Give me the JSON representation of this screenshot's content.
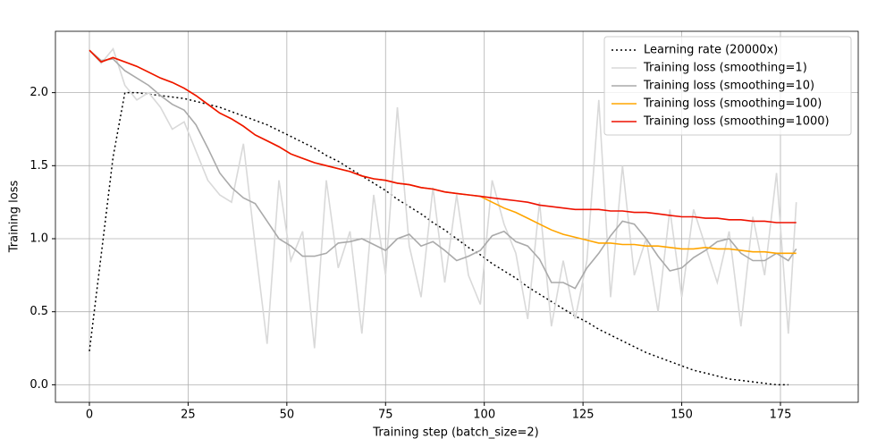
{
  "chart_data": {
    "type": "line",
    "xlabel": "Training step (batch_size=2)",
    "ylabel": "Training loss",
    "x": [
      0,
      3,
      6,
      9,
      12,
      15,
      18,
      21,
      24,
      27,
      30,
      33,
      36,
      39,
      42,
      45,
      48,
      51,
      54,
      57,
      60,
      63,
      66,
      69,
      72,
      75,
      78,
      81,
      84,
      87,
      90,
      93,
      96,
      99,
      102,
      105,
      108,
      111,
      114,
      117,
      120,
      123,
      126,
      129,
      132,
      135,
      138,
      141,
      144,
      147,
      150,
      153,
      156,
      159,
      162,
      165,
      168,
      171,
      174,
      177,
      179
    ],
    "series": [
      {
        "name": "Learning rate (20000x)",
        "color": "#000000",
        "dash": "dotted",
        "values": [
          0.23,
          0.89,
          1.56,
          2.0,
          2.0,
          1.99,
          1.98,
          1.97,
          1.96,
          1.94,
          1.92,
          1.9,
          1.87,
          1.84,
          1.81,
          1.78,
          1.74,
          1.7,
          1.66,
          1.62,
          1.57,
          1.53,
          1.48,
          1.43,
          1.38,
          1.33,
          1.27,
          1.22,
          1.17,
          1.11,
          1.06,
          1.0,
          0.94,
          0.89,
          0.83,
          0.78,
          0.73,
          0.67,
          0.62,
          0.57,
          0.52,
          0.47,
          0.43,
          0.38,
          0.34,
          0.3,
          0.26,
          0.22,
          0.19,
          0.16,
          0.13,
          0.1,
          0.08,
          0.06,
          0.04,
          0.03,
          0.02,
          0.01,
          0.0,
          0.0,
          null
        ]
      },
      {
        "name": "Training loss (smoothing=1)",
        "color": "#d9d9d9",
        "values": [
          2.29,
          2.2,
          2.3,
          2.05,
          1.95,
          2.0,
          1.9,
          1.75,
          1.8,
          1.6,
          1.4,
          1.3,
          1.25,
          1.65,
          0.95,
          0.28,
          1.4,
          0.85,
          1.05,
          0.25,
          1.4,
          0.8,
          1.05,
          0.35,
          1.3,
          0.75,
          1.9,
          0.95,
          0.6,
          1.35,
          0.7,
          1.3,
          0.75,
          0.55,
          1.4,
          1.1,
          0.9,
          0.45,
          1.25,
          0.4,
          0.85,
          0.45,
          0.85,
          1.95,
          0.6,
          1.5,
          0.75,
          1.0,
          0.5,
          1.2,
          0.6,
          1.2,
          0.95,
          0.7,
          1.05,
          0.4,
          1.15,
          0.75,
          1.45,
          0.35,
          1.25
        ]
      },
      {
        "name": "Training loss (smoothing=10)",
        "color": "#aaaaaa",
        "values": [
          2.29,
          2.22,
          2.23,
          2.15,
          2.1,
          2.05,
          1.98,
          1.92,
          1.88,
          1.78,
          1.62,
          1.45,
          1.35,
          1.28,
          1.24,
          1.12,
          1.0,
          0.95,
          0.88,
          0.88,
          0.9,
          0.97,
          0.98,
          1.0,
          0.96,
          0.92,
          1.0,
          1.03,
          0.95,
          0.98,
          0.92,
          0.85,
          0.88,
          0.92,
          1.02,
          1.05,
          0.98,
          0.95,
          0.86,
          0.7,
          0.7,
          0.66,
          0.8,
          0.9,
          1.02,
          1.12,
          1.1,
          1.0,
          0.88,
          0.78,
          0.8,
          0.87,
          0.92,
          0.98,
          1.0,
          0.9,
          0.85,
          0.85,
          0.9,
          0.85,
          0.93
        ]
      },
      {
        "name": "Training loss (smoothing=100)",
        "color": "#ffa500",
        "values": [
          2.29,
          2.21,
          2.24,
          2.21,
          2.18,
          2.14,
          2.1,
          2.07,
          2.03,
          1.98,
          1.92,
          1.86,
          1.82,
          1.77,
          1.71,
          1.67,
          1.63,
          1.58,
          1.55,
          1.52,
          1.5,
          1.48,
          1.46,
          1.43,
          1.41,
          1.4,
          1.38,
          1.37,
          1.35,
          1.34,
          1.32,
          1.31,
          1.3,
          1.29,
          1.25,
          1.21,
          1.18,
          1.14,
          1.1,
          1.06,
          1.03,
          1.01,
          0.99,
          0.97,
          0.97,
          0.96,
          0.96,
          0.95,
          0.95,
          0.94,
          0.93,
          0.93,
          0.94,
          0.93,
          0.93,
          0.92,
          0.91,
          0.91,
          0.9,
          0.9,
          0.9
        ]
      },
      {
        "name": "Training loss (smoothing=1000)",
        "color": "#ee1100",
        "values": [
          2.29,
          2.21,
          2.24,
          2.21,
          2.18,
          2.14,
          2.1,
          2.07,
          2.03,
          1.98,
          1.92,
          1.86,
          1.82,
          1.77,
          1.71,
          1.67,
          1.63,
          1.58,
          1.55,
          1.52,
          1.5,
          1.48,
          1.46,
          1.43,
          1.41,
          1.4,
          1.38,
          1.37,
          1.35,
          1.34,
          1.32,
          1.31,
          1.3,
          1.29,
          1.28,
          1.27,
          1.26,
          1.25,
          1.23,
          1.22,
          1.21,
          1.2,
          1.2,
          1.2,
          1.19,
          1.19,
          1.18,
          1.18,
          1.17,
          1.16,
          1.15,
          1.15,
          1.14,
          1.14,
          1.13,
          1.13,
          1.12,
          1.12,
          1.11,
          1.11,
          1.11
        ]
      }
    ],
    "xlim": [
      -8.6,
      194.7
    ],
    "ylim": [
      -0.12,
      2.42
    ],
    "xticks": [
      0,
      25,
      50,
      75,
      100,
      125,
      150,
      175
    ],
    "yticks": [
      {
        "value": 0,
        "label": "0.0"
      },
      0.5,
      {
        "value": 1,
        "label": "1.0"
      },
      1.5,
      {
        "value": 2,
        "label": "2.0"
      }
    ],
    "grid": true,
    "legend": "upper-right"
  }
}
